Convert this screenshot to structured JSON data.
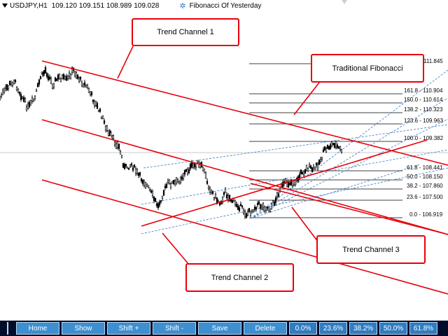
{
  "header": {
    "symbol": "USDJPY,H1",
    "prices": [
      "109.120",
      "109.151",
      "108.989",
      "109.028"
    ],
    "indicator_name": "Fibonacci Of Yesterday"
  },
  "callouts": {
    "trend_channel_1": "Trend Channel 1",
    "trend_channel_2": "Trend Channel 2",
    "trend_channel_3": "Trend Channel 3",
    "traditional_fibonacci": "Traditional Fibonacci"
  },
  "fib_levels": [
    {
      "label": "111.845"
    },
    {
      "label": "161.8 - 110.904"
    },
    {
      "label": "150.0 - 110.614"
    },
    {
      "label": "138.2 - 110.323"
    },
    {
      "label": "123.6 - 109.963"
    },
    {
      "label": "100.0 - 109.382"
    },
    {
      "label": "61.8 - 108.441"
    },
    {
      "label": "50.0 - 108.150"
    },
    {
      "label": "38.2 - 107.860"
    },
    {
      "label": "23.6 - 107.500"
    },
    {
      "label": "0.0 - 106.919"
    }
  ],
  "toolbar": {
    "home": "Home",
    "show": "Show",
    "shift_plus": "Shift +",
    "shift_minus": "Shift -",
    "save": "Save",
    "delete": "Delete",
    "pct_0": "0.0%",
    "pct_236": "23.6%",
    "pct_382": "38.2%",
    "pct_50": "50.0%",
    "pct_618": "61.8%"
  },
  "colors": {
    "channel": "#e8000b",
    "fib_dashed": "#3a78c2",
    "toolbar_bg": "#000c2a",
    "button": "#3d8fcf"
  }
}
